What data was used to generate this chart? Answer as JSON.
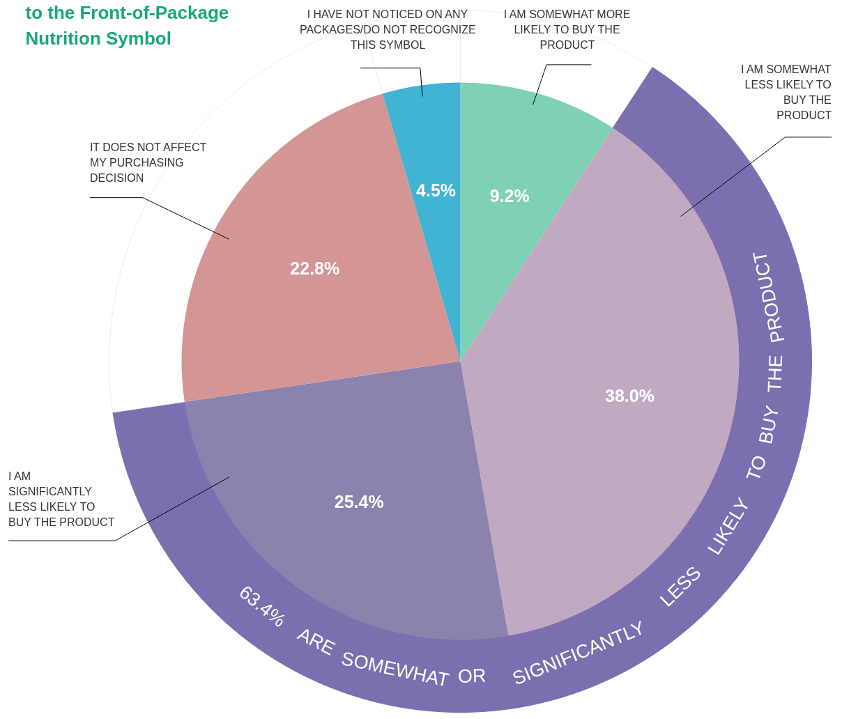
{
  "chart_data": {
    "type": "pie",
    "title": "to the Front-of-Package\nNutrition Symbol",
    "categories": [
      "I AM SOMEWHAT MORE LIKELY TO BUY THE PRODUCT",
      "I AM SOMEWHAT LESS LIKELY TO BUY THE PRODUCT",
      "I AM SIGNIFICANTLY LESS LIKELY TO BUY THE PRODUCT",
      "IT DOES NOT AFFECT MY PURCHASING DECISION",
      "I HAVE NOT NOTICED ON ANY PACKAGES/DO NOT RECOGNIZE THIS SYMBOL"
    ],
    "series": [
      {
        "values": [
          9.2,
          38.0,
          25.4,
          22.8,
          4.5
        ],
        "colors": [
          "#7fd1b3",
          "#c1a9c2",
          "#8b82ae",
          "#d49595",
          "#41b3d3"
        ],
        "value_labels": [
          "9.2%",
          "38.0%",
          "25.4%",
          "22.8%",
          "4.5%"
        ]
      },
      {
        "type": "donut",
        "name": "63.4% ARE SOMEWHAT OR SIGNIFICANTLY LESS LIKELY TO BUY THE PRODUCT",
        "colors": [
          "#ffffff",
          "#7b6faf",
          null,
          "#ffffff",
          "#ffffff"
        ],
        "values": [
          9.2,
          63.4,
          null,
          22.8,
          4.5
        ]
      }
    ]
  }
}
